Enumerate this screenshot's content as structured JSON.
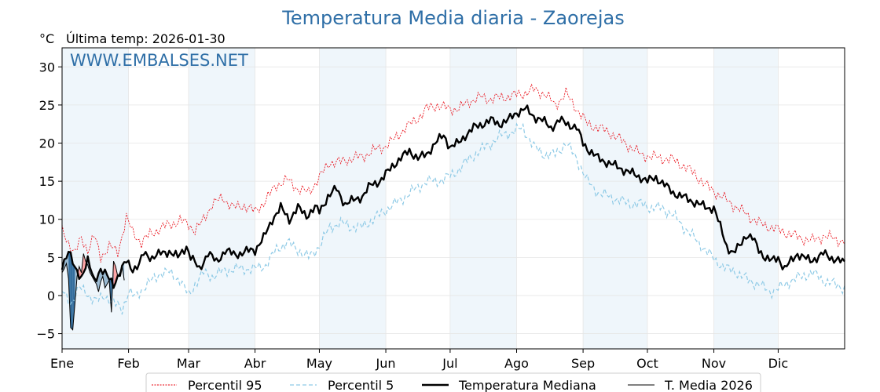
{
  "chart_data": {
    "type": "line",
    "title": "Temperatura Media diaria - Zaorejas",
    "ylabel": "°C",
    "last_temp": "Última temp: 2026-01-30",
    "watermark": "WWW.EMBALSES.NET",
    "ylim": [
      -7,
      32.5
    ],
    "xlim": [
      0,
      365
    ],
    "y_ticks": [
      {
        "v": -5,
        "label": "−5"
      },
      {
        "v": 0,
        "label": "0"
      },
      {
        "v": 5,
        "label": "5"
      },
      {
        "v": 10,
        "label": "10"
      },
      {
        "v": 15,
        "label": "15"
      },
      {
        "v": 20,
        "label": "20"
      },
      {
        "v": 25,
        "label": "25"
      },
      {
        "v": 30,
        "label": "30"
      }
    ],
    "x_ticks": [
      {
        "day": 0,
        "label": "Ene"
      },
      {
        "day": 31,
        "label": "Feb"
      },
      {
        "day": 59,
        "label": "Mar"
      },
      {
        "day": 90,
        "label": "Abr"
      },
      {
        "day": 120,
        "label": "May"
      },
      {
        "day": 151,
        "label": "Jun"
      },
      {
        "day": 181,
        "label": "Jul"
      },
      {
        "day": 212,
        "label": "Ago"
      },
      {
        "day": 243,
        "label": "Sep"
      },
      {
        "day": 273,
        "label": "Oct"
      },
      {
        "day": 304,
        "label": "Nov"
      },
      {
        "day": 334,
        "label": "Dic"
      }
    ],
    "shaded_months": [
      [
        0,
        31
      ],
      [
        59,
        90
      ],
      [
        120,
        151
      ],
      [
        181,
        212
      ],
      [
        243,
        273
      ],
      [
        304,
        334
      ]
    ],
    "grid": true,
    "legend_placement": "bottom-center",
    "colors": {
      "p95": "#e8000b",
      "p5": "#8ecae6",
      "median": "#000000",
      "current": "#000000",
      "above_fill": "#ff9a9a",
      "below_fill_light": "#8fb3cc",
      "below_fill_dark": "#1f5f94",
      "band": "#dcebf7",
      "title": "#2f6fa7"
    },
    "series_p95": {
      "name": "Percentil 95",
      "anchors": [
        [
          0,
          8.5
        ],
        [
          3,
          7
        ],
        [
          6,
          5.5
        ],
        [
          9,
          7.5
        ],
        [
          12,
          6
        ],
        [
          15,
          7.8
        ],
        [
          18,
          5
        ],
        [
          22,
          6.5
        ],
        [
          26,
          5.6
        ],
        [
          30,
          10.3
        ],
        [
          33,
          8.2
        ],
        [
          37,
          7
        ],
        [
          41,
          8
        ],
        [
          45,
          8.7
        ],
        [
          50,
          9.3
        ],
        [
          55,
          9.8
        ],
        [
          59,
          9.4
        ],
        [
          62,
          8.5
        ],
        [
          65,
          9.5
        ],
        [
          70,
          12
        ],
        [
          75,
          12.8
        ],
        [
          80,
          11.5
        ],
        [
          85,
          11.8
        ],
        [
          90,
          11
        ],
        [
          95,
          12.5
        ],
        [
          100,
          14.5
        ],
        [
          105,
          15.2
        ],
        [
          110,
          14
        ],
        [
          115,
          13.5
        ],
        [
          120,
          15.5
        ],
        [
          125,
          17.5
        ],
        [
          130,
          17.5
        ],
        [
          135,
          18
        ],
        [
          140,
          18.2
        ],
        [
          145,
          19
        ],
        [
          150,
          19.5
        ],
        [
          155,
          20.5
        ],
        [
          160,
          22
        ],
        [
          165,
          23
        ],
        [
          170,
          24.5
        ],
        [
          175,
          25
        ],
        [
          180,
          24.5
        ],
        [
          185,
          24.5
        ],
        [
          190,
          25.5
        ],
        [
          195,
          26
        ],
        [
          200,
          25.8
        ],
        [
          205,
          26
        ],
        [
          210,
          26.2
        ],
        [
          215,
          26.5
        ],
        [
          220,
          27
        ],
        [
          225,
          26.5
        ],
        [
          230,
          25
        ],
        [
          235,
          26.5
        ],
        [
          240,
          24.5
        ],
        [
          245,
          22.5
        ],
        [
          250,
          22
        ],
        [
          255,
          21.5
        ],
        [
          260,
          20.5
        ],
        [
          265,
          19.5
        ],
        [
          270,
          18.5
        ],
        [
          275,
          18.2
        ],
        [
          280,
          18
        ],
        [
          285,
          17.8
        ],
        [
          290,
          17
        ],
        [
          295,
          16
        ],
        [
          300,
          14.5
        ],
        [
          305,
          13.5
        ],
        [
          310,
          12.5
        ],
        [
          315,
          11.5
        ],
        [
          320,
          10.5
        ],
        [
          325,
          9.5
        ],
        [
          330,
          9
        ],
        [
          335,
          8.5
        ],
        [
          340,
          8
        ],
        [
          345,
          7.5
        ],
        [
          350,
          7.2
        ],
        [
          355,
          7.8
        ],
        [
          360,
          7.5
        ],
        [
          365,
          7
        ]
      ]
    },
    "series_p5": {
      "name": "Percentil 5",
      "anchors": [
        [
          0,
          0.5
        ],
        [
          4,
          -1
        ],
        [
          8,
          1
        ],
        [
          12,
          0.2
        ],
        [
          16,
          -0.8
        ],
        [
          20,
          0
        ],
        [
          24,
          -1
        ],
        [
          28,
          -1.8
        ],
        [
          31,
          0.5
        ],
        [
          34,
          -0.2
        ],
        [
          38,
          1
        ],
        [
          42,
          2
        ],
        [
          46,
          3
        ],
        [
          50,
          3
        ],
        [
          55,
          2
        ],
        [
          59,
          0
        ],
        [
          62,
          1.5
        ],
        [
          66,
          3
        ],
        [
          70,
          2.5
        ],
        [
          75,
          3.2
        ],
        [
          80,
          3.5
        ],
        [
          85,
          3.5
        ],
        [
          90,
          3.5
        ],
        [
          95,
          4
        ],
        [
          100,
          6
        ],
        [
          105,
          7
        ],
        [
          110,
          6
        ],
        [
          115,
          5
        ],
        [
          120,
          6.5
        ],
        [
          125,
          9
        ],
        [
          130,
          9.5
        ],
        [
          135,
          9
        ],
        [
          140,
          9
        ],
        [
          145,
          10
        ],
        [
          150,
          11
        ],
        [
          155,
          12
        ],
        [
          160,
          13
        ],
        [
          165,
          14
        ],
        [
          170,
          15
        ],
        [
          175,
          15
        ],
        [
          180,
          15.5
        ],
        [
          185,
          16.5
        ],
        [
          190,
          18
        ],
        [
          195,
          19
        ],
        [
          200,
          20
        ],
        [
          205,
          21
        ],
        [
          210,
          21.5
        ],
        [
          215,
          22
        ],
        [
          220,
          19.5
        ],
        [
          225,
          18.5
        ],
        [
          230,
          18.5
        ],
        [
          235,
          20
        ],
        [
          240,
          18
        ],
        [
          245,
          15
        ],
        [
          250,
          13.5
        ],
        [
          255,
          13
        ],
        [
          260,
          12.5
        ],
        [
          265,
          12
        ],
        [
          270,
          12
        ],
        [
          275,
          11.5
        ],
        [
          280,
          11.5
        ],
        [
          285,
          10.5
        ],
        [
          290,
          9
        ],
        [
          295,
          7.5
        ],
        [
          300,
          6
        ],
        [
          305,
          4.5
        ],
        [
          310,
          3.5
        ],
        [
          315,
          3
        ],
        [
          320,
          2
        ],
        [
          325,
          1.5
        ],
        [
          330,
          0.5
        ],
        [
          335,
          1
        ],
        [
          340,
          2
        ],
        [
          345,
          2.5
        ],
        [
          350,
          3
        ],
        [
          355,
          2
        ],
        [
          360,
          1.5
        ],
        [
          365,
          1
        ]
      ]
    },
    "series_median": {
      "name": "Temperatura Mediana",
      "anchors": [
        [
          0,
          4
        ],
        [
          3,
          5.8
        ],
        [
          6,
          3.5
        ],
        [
          9,
          2.5
        ],
        [
          12,
          4.5
        ],
        [
          15,
          2
        ],
        [
          18,
          3.5
        ],
        [
          21,
          2.5
        ],
        [
          24,
          1.5
        ],
        [
          27,
          3
        ],
        [
          30,
          4.5
        ],
        [
          33,
          3.5
        ],
        [
          36,
          4
        ],
        [
          38,
          5.5
        ],
        [
          42,
          5
        ],
        [
          46,
          5.5
        ],
        [
          50,
          5.8
        ],
        [
          54,
          5
        ],
        [
          58,
          6.5
        ],
        [
          60,
          5
        ],
        [
          64,
          3.5
        ],
        [
          68,
          5.5
        ],
        [
          72,
          4.5
        ],
        [
          76,
          5.8
        ],
        [
          80,
          5.5
        ],
        [
          84,
          5.5
        ],
        [
          88,
          6
        ],
        [
          90,
          6
        ],
        [
          94,
          7.5
        ],
        [
          98,
          10
        ],
        [
          102,
          11.5
        ],
        [
          106,
          10
        ],
        [
          110,
          11.5
        ],
        [
          114,
          10.5
        ],
        [
          118,
          11.5
        ],
        [
          120,
          11
        ],
        [
          124,
          13
        ],
        [
          128,
          14
        ],
        [
          132,
          12
        ],
        [
          136,
          12.5
        ],
        [
          140,
          13
        ],
        [
          144,
          14.5
        ],
        [
          148,
          15
        ],
        [
          150,
          15.5
        ],
        [
          154,
          17
        ],
        [
          158,
          18
        ],
        [
          162,
          19
        ],
        [
          166,
          18
        ],
        [
          170,
          18.5
        ],
        [
          174,
          20
        ],
        [
          178,
          21
        ],
        [
          181,
          19.5
        ],
        [
          185,
          20
        ],
        [
          188,
          21
        ],
        [
          192,
          22
        ],
        [
          196,
          22.5
        ],
        [
          200,
          23
        ],
        [
          204,
          22.5
        ],
        [
          208,
          23
        ],
        [
          212,
          24
        ],
        [
          216,
          24.5
        ],
        [
          220,
          23.5
        ],
        [
          224,
          23
        ],
        [
          228,
          22
        ],
        [
          232,
          23
        ],
        [
          236,
          22.5
        ],
        [
          240,
          22
        ],
        [
          243,
          20
        ],
        [
          246,
          19
        ],
        [
          250,
          18
        ],
        [
          254,
          17.5
        ],
        [
          258,
          17
        ],
        [
          262,
          16.5
        ],
        [
          266,
          16
        ],
        [
          270,
          15.5
        ],
        [
          273,
          15
        ],
        [
          277,
          15.5
        ],
        [
          281,
          14.5
        ],
        [
          285,
          13.5
        ],
        [
          289,
          13
        ],
        [
          293,
          12.5
        ],
        [
          297,
          12
        ],
        [
          301,
          11.5
        ],
        [
          304,
          11.5
        ],
        [
          307,
          9
        ],
        [
          310,
          6.5
        ],
        [
          313,
          5.5
        ],
        [
          316,
          6.5
        ],
        [
          319,
          8
        ],
        [
          322,
          7.5
        ],
        [
          325,
          6
        ],
        [
          328,
          5
        ],
        [
          331,
          4.5
        ],
        [
          334,
          5
        ],
        [
          337,
          3.5
        ],
        [
          340,
          4.5
        ],
        [
          343,
          5.5
        ],
        [
          346,
          5
        ],
        [
          349,
          4.5
        ],
        [
          352,
          5
        ],
        [
          355,
          5.5
        ],
        [
          358,
          5
        ],
        [
          361,
          4.8
        ],
        [
          365,
          4.2
        ]
      ]
    },
    "series_current": {
      "name": "T. Media 2026",
      "values": [
        [
          0,
          3
        ],
        [
          1,
          3.5
        ],
        [
          2,
          4.2
        ],
        [
          3,
          2.2
        ],
        [
          4,
          -4.2
        ],
        [
          5,
          -4.5
        ],
        [
          6,
          -1
        ],
        [
          7,
          2.5
        ],
        [
          8,
          3.8
        ],
        [
          9,
          3
        ],
        [
          10,
          5.5
        ],
        [
          11,
          4.5
        ],
        [
          12,
          4
        ],
        [
          13,
          3
        ],
        [
          14,
          2.5
        ],
        [
          15,
          2
        ],
        [
          16,
          1.5
        ],
        [
          17,
          0.5
        ],
        [
          18,
          1.8
        ],
        [
          19,
          2.5
        ],
        [
          20,
          1
        ],
        [
          21,
          1.5
        ],
        [
          22,
          2
        ],
        [
          23,
          -2.2
        ],
        [
          24,
          4.5
        ],
        [
          25,
          3.8
        ],
        [
          26,
          2.5
        ],
        [
          27,
          3
        ],
        [
          28,
          4
        ],
        [
          29,
          2
        ]
      ]
    }
  }
}
